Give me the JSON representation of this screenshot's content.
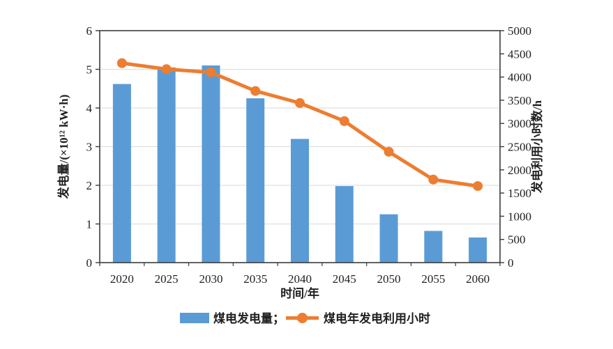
{
  "chart_data": {
    "type": "bar+line",
    "categories": [
      "2020",
      "2025",
      "2030",
      "2035",
      "2040",
      "2045",
      "2050",
      "2055",
      "2060"
    ],
    "series": [
      {
        "name": "煤电发电量",
        "type": "bar",
        "axis": "left",
        "color": "#5B9BD5",
        "values": [
          4.62,
          5.05,
          5.1,
          4.25,
          3.2,
          1.98,
          1.25,
          0.82,
          0.65
        ]
      },
      {
        "name": "煤电年发电利用小时",
        "type": "line",
        "axis": "right",
        "color": "#ED7D31",
        "values": [
          4300,
          4170,
          4100,
          3700,
          3440,
          3050,
          2390,
          1790,
          1650
        ]
      }
    ],
    "xlabel": "时间/年",
    "left_axis": {
      "label": "发电量/(×10¹² kW·h)",
      "min": 0,
      "max": 6,
      "ticks": [
        "0",
        "1",
        "2",
        "3",
        "4",
        "5",
        "6"
      ]
    },
    "right_axis": {
      "label": "发电利用小时数/h",
      "min": 0,
      "max": 5000,
      "ticks": [
        "0",
        "500",
        "1000",
        "1500",
        "2000",
        "2500",
        "3000",
        "3500",
        "4000",
        "4500",
        "5000"
      ]
    },
    "legend": [
      {
        "label": "煤电发电量；",
        "swatch": "bar"
      },
      {
        "label": "煤电年发电利用小时",
        "swatch": "line"
      }
    ],
    "grid": true,
    "legend_position": "bottom-center",
    "colors": {
      "bar": "#5B9BD5",
      "line": "#ED7D31",
      "grid": "#D9D9D9",
      "axis": "#3B3B3B",
      "text": "#1F1F1F",
      "background": "#FFFFFF"
    }
  }
}
